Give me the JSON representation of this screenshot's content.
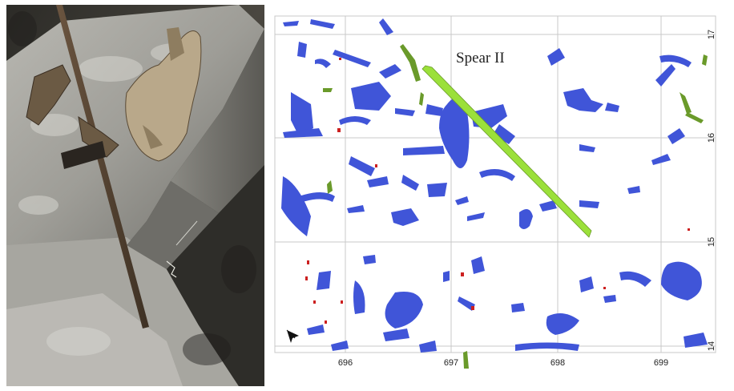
{
  "figure": {
    "title": "Spear II",
    "x_ticks": [
      "696",
      "697",
      "698",
      "699"
    ],
    "y_ticks": [
      "17",
      "16",
      "15",
      "14"
    ]
  },
  "colors": {
    "bone": "#4055d8",
    "wood": "#6a9a2a",
    "spear": "#9be03a",
    "flint": "#cc2020",
    "grid": "#c8c8c8",
    "photo_background": "#3b3a35"
  },
  "icons": {
    "north_arrow": "north-arrow-icon"
  }
}
